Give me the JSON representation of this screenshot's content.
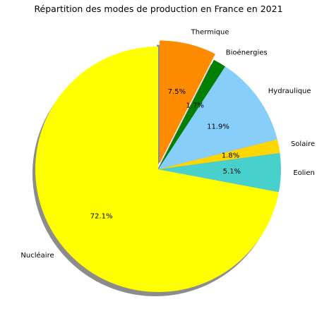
{
  "chart_data": {
    "type": "pie",
    "title": "Répartition des modes de production en France en 2021",
    "slices": [
      {
        "label": "Nucléaire",
        "value": 72.1,
        "pct_label": "72.1%",
        "color": "#ffff00",
        "explode": 0
      },
      {
        "label": "Eolien",
        "value": 5.1,
        "pct_label": "5.1%",
        "color": "#48d1cc",
        "explode": 0
      },
      {
        "label": "Solaire",
        "value": 1.8,
        "pct_label": "1.8%",
        "color": "#ffd700",
        "explode": 0
      },
      {
        "label": "Hydraulique",
        "value": 11.9,
        "pct_label": "11.9%",
        "color": "#87cefa",
        "explode": 0
      },
      {
        "label": "Bioénergies",
        "value": 1.7,
        "pct_label": "1.7%",
        "color": "#008000",
        "explode": 0
      },
      {
        "label": "Thermique",
        "value": 7.5,
        "pct_label": "7.5%",
        "color": "#ff8c00",
        "explode": 0.05
      }
    ],
    "start_angle_deg": 90,
    "direction": "counterclockwise",
    "shadow": true,
    "legend": "none"
  }
}
